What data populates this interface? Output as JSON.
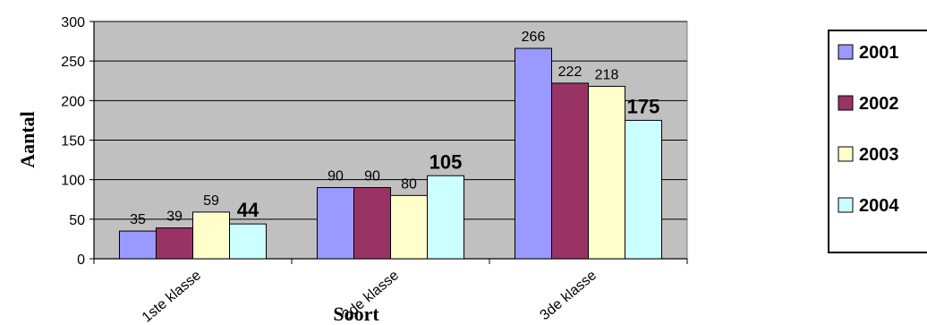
{
  "chart_data": {
    "type": "bar",
    "categories": [
      "1ste klasse",
      "2de klasse",
      "3de klasse"
    ],
    "series": [
      {
        "name": "2001",
        "values": [
          35,
          90,
          266
        ],
        "color": "#9999ff"
      },
      {
        "name": "2002",
        "values": [
          39,
          90,
          222
        ],
        "color": "#993366"
      },
      {
        "name": "2003",
        "values": [
          59,
          80,
          218
        ],
        "color": "#ffffcc"
      },
      {
        "name": "2004",
        "values": [
          44,
          105,
          175
        ],
        "color": "#ccffff"
      }
    ],
    "emphasized_series": "2004",
    "title": "",
    "xlabel": "Soort",
    "ylabel": "Aantal",
    "ylim": [
      0,
      300
    ],
    "yticks": [
      0,
      50,
      100,
      150,
      200,
      250,
      300
    ],
    "grid": true,
    "plot_background": "#c0c0c0",
    "legend": "right"
  }
}
